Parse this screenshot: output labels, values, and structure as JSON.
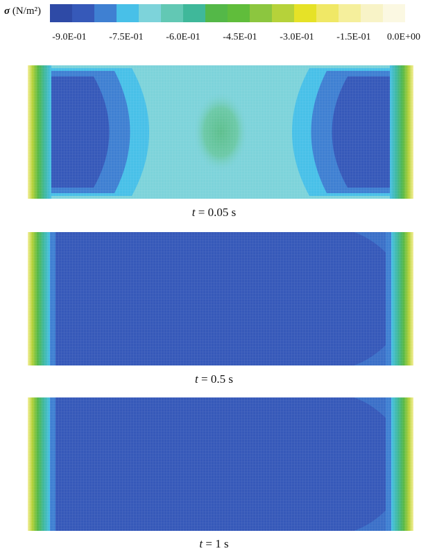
{
  "legend": {
    "symbol": "σ",
    "unit": "(N/m²)",
    "colors": [
      "#2e4aa6",
      "#3659b9",
      "#3f80d2",
      "#48c0e8",
      "#7dd3da",
      "#62c8b4",
      "#3fb89a",
      "#54b848",
      "#60bd3b",
      "#8cc63f",
      "#b6d23a",
      "#e6e227",
      "#f0e866",
      "#f5ef9c",
      "#f8f3c7",
      "#fbf8e2"
    ],
    "tick_labels": [
      "-9.0E-01",
      "-7.5E-01",
      "-6.0E-01",
      "-4.5E-01",
      "-3.0E-01",
      "-1.5E-01",
      "0.0E+00"
    ]
  },
  "panels": [
    {
      "caption_var": "t",
      "caption_rest": " = 0.05 s",
      "state": "early"
    },
    {
      "caption_var": "t",
      "caption_rest": " = 0.5 s",
      "state": "steady"
    },
    {
      "caption_var": "t",
      "caption_rest": " = 1 s",
      "state": "steady"
    }
  ]
}
